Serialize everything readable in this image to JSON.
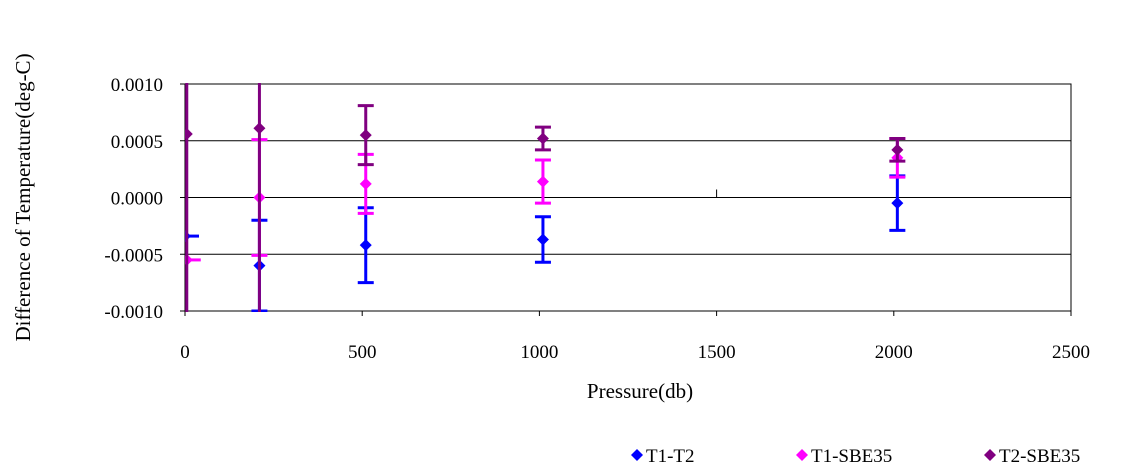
{
  "chart_data": {
    "type": "scatter",
    "title": "",
    "xlabel": "Pressure(db)",
    "ylabel": "Difference of Temperature(deg-C)",
    "xlim": [
      0,
      2500
    ],
    "ylim": [
      -0.001,
      0.001
    ],
    "x_ticks": [
      0,
      500,
      1000,
      1500,
      2000,
      2500
    ],
    "x_tick_labels": [
      "0",
      "500",
      "1000",
      "1500",
      "2000",
      "2500"
    ],
    "y_ticks": [
      0.001,
      0.0005,
      0.0,
      -0.0005,
      -0.001
    ],
    "y_tick_labels": [
      "0.0010",
      "0.0005",
      "0.0000",
      "-0.0005",
      "-0.0010"
    ],
    "grid": "horizontal",
    "legend_position": "bottom-right",
    "series": [
      {
        "name": "T1-T2",
        "color": "#0000ff",
        "marker": "diamond",
        "points": [
          {
            "x": 0,
            "y": -0.00034,
            "err": 0
          },
          {
            "x": 210,
            "y": -0.0006,
            "err": 0.0004
          },
          {
            "x": 510,
            "y": -0.00042,
            "err": 0.00033
          },
          {
            "x": 1010,
            "y": -0.00037,
            "err": 0.0002
          },
          {
            "x": 2010,
            "y": -5e-05,
            "err": 0.00024
          }
        ]
      },
      {
        "name": "T1-SBE35",
        "color": "#ff00ff",
        "marker": "diamond",
        "points": [
          {
            "x": 5,
            "y": -0.00055,
            "err": 0
          },
          {
            "x": 210,
            "y": 0.0,
            "err": 0.00051
          },
          {
            "x": 510,
            "y": 0.00012,
            "err": 0.00026
          },
          {
            "x": 1010,
            "y": 0.00014,
            "err": 0.00019
          },
          {
            "x": 2010,
            "y": 0.00035,
            "err": 0.00017
          }
        ]
      },
      {
        "name": "T2-SBE35",
        "color": "#800080",
        "marker": "diamond",
        "points": [
          {
            "x": 5,
            "y": 0.00056,
            "err": 0.002
          },
          {
            "x": 210,
            "y": 0.00061,
            "err": 0.002
          },
          {
            "x": 510,
            "y": 0.00055,
            "err": 0.00026
          },
          {
            "x": 1010,
            "y": 0.00052,
            "err": 0.0001
          },
          {
            "x": 2010,
            "y": 0.00042,
            "err": 0.0001
          }
        ]
      }
    ]
  }
}
